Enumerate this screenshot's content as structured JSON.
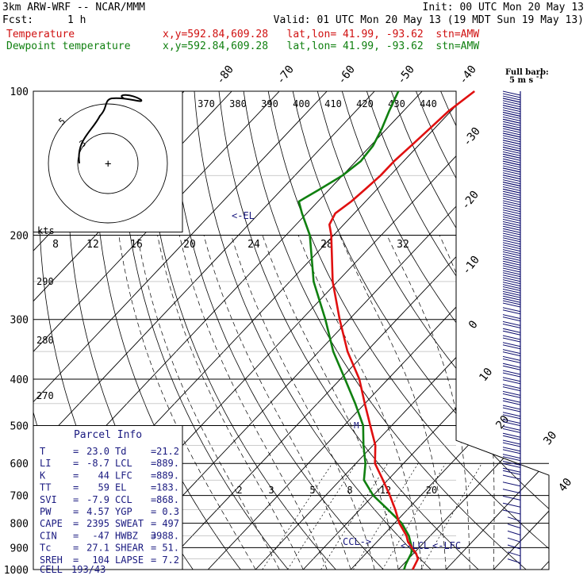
{
  "header": {
    "model": "3km ARW-WRF -- NCAR/MMM",
    "init": "Init: 00 UTC Mon 20 May 13",
    "fcst_label": "Fcst:",
    "fcst_value": "1 h",
    "valid": "Valid: 01 UTC Mon 20 May 13 (19 MDT Sun 19 May 13)",
    "temp_label": "Temperature",
    "temp_info": "x,y=592.84,609.28   lat,lon= 41.99, -93.62  stn=AMW",
    "dew_label": "Dewpoint temperature",
    "dew_info": "x,y=592.84,609.28   lat,lon= 41.99, -93.62  stn=AMW"
  },
  "colors": {
    "temperature": "#e01010",
    "dewpoint": "#108010",
    "barbs": "#101070",
    "labels": "#1a1a80"
  },
  "chart_data": {
    "type": "line",
    "pressure_levels": [
      100,
      200,
      300,
      400,
      500,
      600,
      700,
      800,
      900,
      1000
    ],
    "dry_adiabat_labels": [
      270,
      280,
      290
    ],
    "pressure_range": [
      100,
      1000
    ],
    "temperature_range_at_1000hPa": [
      -20,
      40
    ],
    "skewed_isotherm_labels": [
      -80,
      -70,
      -60,
      -50,
      -40,
      -30,
      -20,
      -10,
      0,
      10,
      20,
      30,
      40
    ],
    "theta_e_labels": [
      370,
      380,
      390,
      400,
      410,
      420,
      430,
      440
    ],
    "mixing_ratio_labels": [
      "2",
      "3",
      "5",
      "8",
      "12",
      "20"
    ],
    "series": [
      {
        "name": "Temperature",
        "p": [
          1000,
          975,
          950,
          925,
          900,
          875,
          850,
          800,
          750,
          700,
          650,
          600,
          550,
          500,
          450,
          400,
          350,
          300,
          250,
          200,
          190,
          180,
          170,
          160,
          150,
          140,
          130,
          120,
          110,
          100
        ],
        "t": [
          23.0,
          22.5,
          22.0,
          20.5,
          18.5,
          16.5,
          15.0,
          11.0,
          7.5,
          3.5,
          -1.0,
          -6.0,
          -9.5,
          -14.5,
          -20.0,
          -26.0,
          -34.0,
          -42.0,
          -51.0,
          -60.5,
          -63.0,
          -64.0,
          -63.0,
          -62.5,
          -62.0,
          -62.0,
          -61.5,
          -61.0,
          -60.5,
          -59.0
        ]
      },
      {
        "name": "Dewpoint temperature",
        "p": [
          1000,
          975,
          950,
          925,
          900,
          875,
          850,
          800,
          750,
          700,
          650,
          600,
          550,
          500,
          450,
          400,
          350,
          300,
          250,
          200,
          180,
          170,
          160,
          150,
          140,
          130,
          120,
          110,
          100
        ],
        "t": [
          21.2,
          20.5,
          20.0,
          19.5,
          18.5,
          17.0,
          15.5,
          11.5,
          6.0,
          0.0,
          -5.0,
          -8.0,
          -12.0,
          -16.0,
          -22.0,
          -29.0,
          -37.0,
          -45.0,
          -55.0,
          -65.0,
          -71.0,
          -74.0,
          -72.0,
          -70.0,
          -69.0,
          -69.5,
          -71.0,
          -73.0,
          -75.0
        ]
      }
    ],
    "markers": {
      "el": "<-EL",
      "lcl": "<-LCL",
      "lfc": "<-LFC",
      "ccl": "CCL->",
      "m": "M"
    },
    "barbs": {
      "title": "Full barb:",
      "unit": "5 m s",
      "unit_exp": "-1"
    },
    "hodograph": {
      "rings": [
        "3",
        "5"
      ],
      "title": "kts",
      "speed_labels": [
        "8",
        "12",
        "16",
        "20",
        "24",
        "28",
        "32"
      ],
      "center_mark": "+"
    },
    "parcel_info": {
      "title": "Parcel Info",
      "rows": [
        [
          "T",
          "23.0",
          "Td",
          "21.2"
        ],
        [
          "LI",
          "-8.7",
          "LCL",
          "889."
        ],
        [
          "K",
          "44",
          "LFC",
          "889."
        ],
        [
          "TT",
          "59",
          "EL",
          "183."
        ],
        [
          "SVI",
          "-7.9",
          "CCL",
          "868."
        ],
        [
          "PW",
          "4.57",
          "YGP",
          "0.3"
        ],
        [
          "CAPE",
          "2395",
          "SWEAT",
          "497"
        ],
        [
          "CIN",
          "-47",
          "HWBZ",
          "3988."
        ],
        [
          "Tc",
          "27.1",
          "SHEAR",
          "51."
        ],
        [
          "SREH",
          "104",
          "LAPSE",
          "7.2"
        ]
      ],
      "cell_label": "CELL",
      "cell_value": "193/43"
    }
  }
}
